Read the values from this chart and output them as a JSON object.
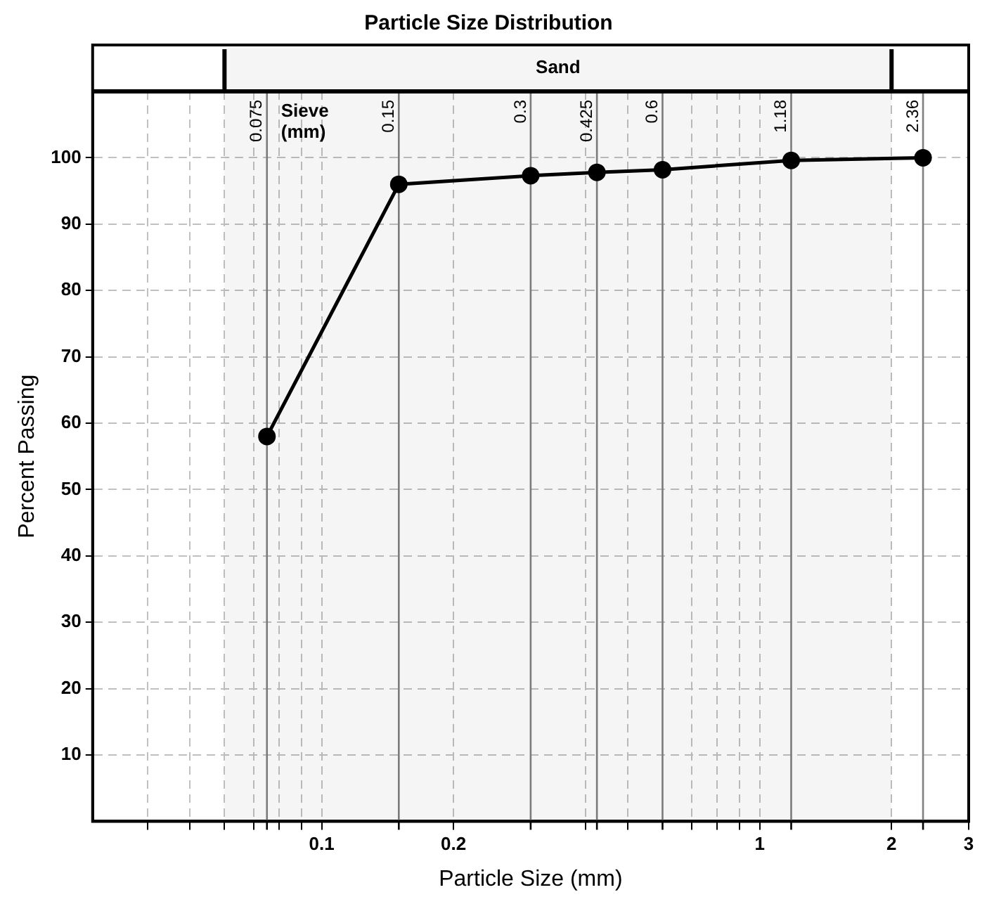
{
  "chart_data": {
    "type": "line",
    "title": "Particle Size Distribution",
    "xlabel": "Particle Size (mm)",
    "ylabel": "Percent Passing",
    "log": "x",
    "grid": true,
    "legend": false,
    "marker": "circle",
    "line_style": "solid",
    "x": [
      0.075,
      0.15,
      0.3,
      0.425,
      0.6,
      1.18,
      2.36
    ],
    "series": [
      {
        "color": "#000000",
        "values": [
          58,
          96,
          97.3,
          97.8,
          98.2,
          99.6,
          100
        ]
      }
    ],
    "xlim": [
      0.03,
      3
    ],
    "xticks": [
      {
        "value": 0.04,
        "label": null
      },
      {
        "value": 0.05,
        "label": null
      },
      {
        "value": 0.06,
        "label": null
      },
      {
        "value": 0.07,
        "label": null
      },
      {
        "value": 0.08,
        "label": null
      },
      {
        "value": 0.09,
        "label": null
      },
      0.1,
      0.2,
      {
        "value": 0.4,
        "label": null
      },
      {
        "value": 0.5,
        "label": null
      },
      {
        "value": 0.7,
        "label": null
      },
      {
        "value": 0.8,
        "label": null
      },
      {
        "value": 0.9,
        "label": null
      },
      1,
      2,
      3
    ],
    "ylim": [
      0,
      110
    ],
    "yticks": [
      10,
      20,
      30,
      40,
      50,
      60,
      70,
      80,
      90,
      100
    ],
    "ref_lines": [
      {
        "axis": "x",
        "value": 0.075,
        "label": "0.075",
        "color": "#808080"
      },
      {
        "axis": "x",
        "value": 0.15,
        "label": "0.15",
        "color": "#808080"
      },
      {
        "axis": "x",
        "value": 0.3,
        "label": "0.3",
        "color": "#808080"
      },
      {
        "axis": "x",
        "value": 0.425,
        "label": "0.425",
        "color": "#808080"
      },
      {
        "axis": "x",
        "value": 0.6,
        "label": "0.6",
        "color": "#808080"
      },
      {
        "axis": "x",
        "value": 1.18,
        "label": "1.18",
        "color": "#808080"
      },
      {
        "axis": "x",
        "value": 2.36,
        "label": "2.36",
        "color": "#808080"
      }
    ],
    "bands": [
      {
        "axis": "x",
        "from": 0.06,
        "to": 2,
        "label": "Sand",
        "color": "#000000"
      }
    ],
    "annotations": [
      "Sieve (mm)"
    ]
  }
}
